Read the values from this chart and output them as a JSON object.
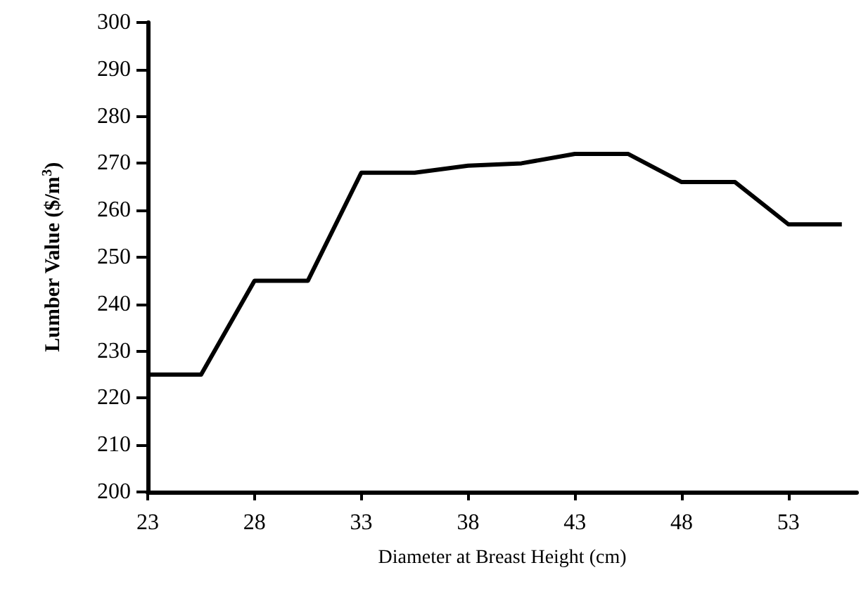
{
  "chart_data": {
    "type": "line",
    "xlabel": "Diameter at Breast Height (cm)",
    "ylabel": "Lumber Value ($/m$^{3}$)",
    "x": [
      23,
      25.5,
      28,
      30.5,
      33,
      35.5,
      38,
      40.5,
      43,
      45.5,
      48,
      50.5,
      53,
      55.5
    ],
    "series": [
      {
        "color": "#000000",
        "values": [
          225,
          225,
          245,
          245,
          268,
          268,
          269.5,
          270,
          272,
          272,
          266,
          266,
          257,
          257
        ]
      }
    ],
    "xlim": [
      23,
      56.2
    ],
    "xticks": [
      23,
      28,
      33,
      38,
      43,
      48,
      53
    ],
    "ylim": [
      200,
      300
    ],
    "yticks": [
      200,
      210,
      220,
      230,
      240,
      250,
      260,
      270,
      280,
      290,
      300
    ],
    "grid": false,
    "marker": "none",
    "line_style": "solid"
  }
}
